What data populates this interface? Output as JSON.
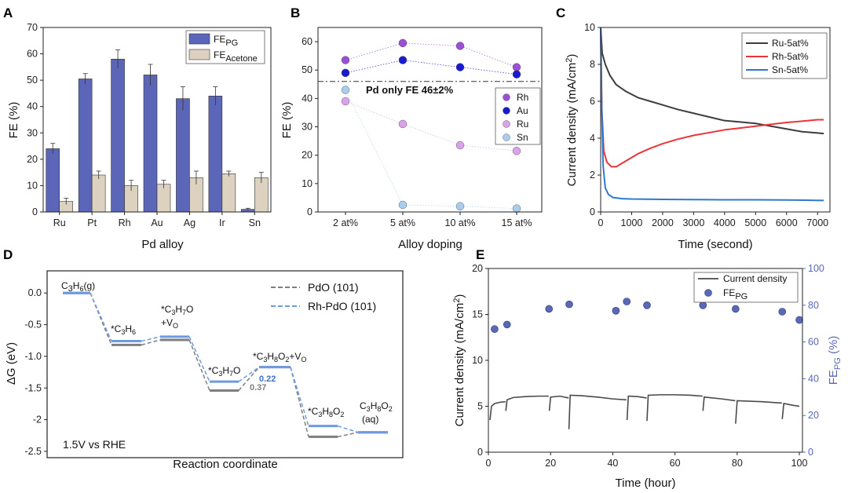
{
  "panel_labels": {
    "A": "A",
    "B": "B",
    "C": "C",
    "D": "D",
    "E": "E"
  },
  "chart_data": [
    {
      "id": "A",
      "type": "bar",
      "title": "",
      "xlabel": "Pd alloy",
      "ylabel": "FE (%)",
      "ylim": [
        0,
        70
      ],
      "yticks": [
        0,
        10,
        20,
        30,
        40,
        50,
        60,
        70
      ],
      "categories": [
        "Ru",
        "Pt",
        "Rh",
        "Au",
        "Ag",
        "Ir",
        "Sn"
      ],
      "series": [
        {
          "name": "FE",
          "sub": "PG",
          "color": "#5b66b8",
          "values": [
            24,
            50.5,
            58,
            52,
            43,
            44,
            1
          ],
          "errors": [
            2,
            2,
            3.5,
            4,
            4.5,
            3.5,
            0.4
          ]
        },
        {
          "name": "FE",
          "sub": "Acetone",
          "color": "#ddd1bf",
          "values": [
            4,
            14,
            10,
            10.5,
            13,
            14.5,
            13
          ],
          "errors": [
            1.2,
            1.5,
            2,
            1.5,
            2.5,
            1,
            2
          ]
        }
      ]
    },
    {
      "id": "B",
      "type": "scatter",
      "xlabel": "Alloy doping",
      "ylabel": "FE (%)",
      "ylim": [
        0,
        65
      ],
      "yticks": [
        0,
        10,
        20,
        30,
        40,
        50,
        60
      ],
      "categories": [
        "2 at%",
        "5 at%",
        "10 at%",
        "15 at%"
      ],
      "reference": {
        "value": 46,
        "label": "Pd only FE 46±2%"
      },
      "series": [
        {
          "name": "Rh",
          "color": "#9b4fd6",
          "values": [
            53.5,
            59.5,
            58.5,
            51
          ]
        },
        {
          "name": "Au",
          "color": "#1a1ad0",
          "values": [
            49,
            53.5,
            51,
            48.5
          ]
        },
        {
          "name": "Ru",
          "color": "#d9a2ea",
          "values": [
            39,
            31,
            23.5,
            21.5
          ]
        },
        {
          "name": "Sn",
          "color": "#a9cdee",
          "values": [
            43,
            2.5,
            2,
            1.2
          ]
        }
      ]
    },
    {
      "id": "C",
      "type": "line",
      "xlabel": "Time (second)",
      "ylabel": "Current density (mA/cm",
      "ylabel_sup": "2",
      "ylabel_end": ")",
      "xlim": [
        0,
        7400
      ],
      "ylim": [
        0,
        10
      ],
      "xticks": [
        0,
        1000,
        2000,
        3000,
        4000,
        5000,
        6000,
        7000
      ],
      "yticks": [
        0,
        2,
        4,
        6,
        8,
        10
      ],
      "series": [
        {
          "name": "Ru-5at%",
          "color": "#3c3c3c",
          "x": [
            0,
            50,
            150,
            300,
            500,
            800,
            1200,
            1600,
            2000,
            2500,
            3000,
            3500,
            4000,
            4500,
            5000,
            5500,
            6000,
            6500,
            7000,
            7200
          ],
          "y": [
            10,
            8.6,
            8.0,
            7.4,
            6.9,
            6.55,
            6.2,
            6.0,
            5.8,
            5.55,
            5.35,
            5.15,
            4.95,
            4.88,
            4.8,
            4.65,
            4.5,
            4.35,
            4.28,
            4.25
          ]
        },
        {
          "name": "Rh-5at%",
          "color": "#e8343a",
          "x": [
            0,
            40,
            100,
            200,
            350,
            500,
            800,
            1200,
            1600,
            2000,
            2500,
            3000,
            3500,
            4000,
            4500,
            5000,
            5500,
            6000,
            6500,
            7000,
            7200
          ],
          "y": [
            10,
            5.5,
            3.3,
            2.7,
            2.45,
            2.45,
            2.75,
            3.15,
            3.45,
            3.7,
            3.95,
            4.15,
            4.3,
            4.45,
            4.55,
            4.65,
            4.75,
            4.85,
            4.92,
            5.0,
            5.0
          ]
        },
        {
          "name": "Sn-5at%",
          "color": "#2f78d0",
          "x": [
            0,
            30,
            80,
            150,
            250,
            400,
            700,
            1000,
            2000,
            3000,
            4000,
            5000,
            6000,
            7000,
            7200
          ],
          "y": [
            10,
            6,
            2.5,
            1.3,
            0.95,
            0.78,
            0.72,
            0.7,
            0.68,
            0.67,
            0.66,
            0.66,
            0.65,
            0.63,
            0.62
          ]
        }
      ]
    },
    {
      "id": "D",
      "type": "line",
      "subtype": "energy-diagram",
      "xlabel": "Reaction coordinate",
      "ylabel": "ΔG (eV)",
      "ylim": [
        -2.6,
        0.35
      ],
      "yticks": [
        0.0,
        -0.5,
        -1.0,
        -1.5,
        -2.0,
        -2.5
      ],
      "ytick_labels": [
        "0.0",
        "-0.5",
        "-1.0",
        "-1.5",
        "-2",
        "-2.5"
      ],
      "condition": "1.5V vs RHE",
      "states": [
        "C3H6(g)",
        "*C3H6",
        "*C3H7O+VO",
        "*C3H7O",
        "*C3H8O2+VO",
        "*C3H8O2",
        "C3H8O2(aq)"
      ],
      "series": [
        {
          "name": "PdO (101)",
          "color": "#7f7f7f",
          "values": [
            0.0,
            -0.82,
            -0.74,
            -1.54,
            -1.17,
            -2.27,
            -2.2
          ]
        },
        {
          "name": "Rh-PdO (101)",
          "color": "#6f9ae0",
          "values": [
            0.0,
            -0.76,
            -0.69,
            -1.4,
            -1.17,
            -2.1,
            -2.2
          ]
        }
      ],
      "barriers": [
        {
          "label": "0.37",
          "color": "#7f7f7f"
        },
        {
          "label": "0.22",
          "color": "#3c72c8"
        }
      ],
      "state_labels": {
        "s1": "C",
        "s1a": "3",
        "s1b": "H",
        "s1c": "6",
        "s1d": "(g)",
        "s2": "*C",
        "s2a": "3",
        "s2b": "H",
        "s2c": "6",
        "s3": "*C",
        "s3a": "3",
        "s3b": "H",
        "s3c": "7",
        "s3d": "O",
        "s3e": "+V",
        "s3f": "O",
        "s4": "*C",
        "s4a": "3",
        "s4b": "H",
        "s4c": "7",
        "s4d": "O",
        "s5": "*C",
        "s5a": "3",
        "s5b": "H",
        "s5c": "8",
        "s5d": "O",
        "s5e": "2",
        "s5f": "+V",
        "s5g": "O",
        "s6": "*C",
        "s6a": "3",
        "s6b": "H",
        "s6c": "8",
        "s6d": "O",
        "s6e": "2",
        "s7": "C",
        "s7a": "3",
        "s7b": "H",
        "s7c": "8",
        "s7d": "O",
        "s7e": "2",
        "s7f": "(aq)"
      }
    },
    {
      "id": "E",
      "type": "line",
      "xlabel": "Time (hour)",
      "ylabel": "Current density (mA/cm",
      "ylabel_sup": "2",
      "ylabel_end": ")",
      "y2label": "FE",
      "y2label_sub": "PG",
      "y2label_end": " (%)",
      "xlim": [
        0,
        101
      ],
      "ylim": [
        0,
        20
      ],
      "y2lim": [
        0,
        100
      ],
      "xticks": [
        0,
        20,
        40,
        60,
        80,
        100
      ],
      "yticks": [
        0,
        5,
        10,
        15,
        20
      ],
      "y2ticks": [
        0,
        20,
        40,
        60,
        80,
        100
      ],
      "line": {
        "name": "Current density",
        "color": "#4a4a4a"
      },
      "points": {
        "name": "FE",
        "sub": "PG",
        "color": "#5a68b8",
        "x": [
          2,
          6,
          19.5,
          26,
          41,
          44.5,
          51,
          69,
          79.5,
          94.5,
          100
        ],
        "y": [
          67,
          69.5,
          78,
          80.5,
          77,
          82,
          80,
          80,
          78,
          76.5,
          72
        ]
      },
      "segments": [
        {
          "x": [
            0.5,
            1,
            2,
            4,
            5.5
          ],
          "y": [
            3.5,
            5.0,
            5.3,
            5.45,
            5.5
          ]
        },
        {
          "x": [
            5.6,
            6,
            8,
            12,
            16,
            19.4
          ],
          "y": [
            4.5,
            5.7,
            5.95,
            6.05,
            6.1,
            6.1
          ]
        },
        {
          "x": [
            19.6,
            20,
            23,
            25.8
          ],
          "y": [
            4.5,
            6.0,
            6.1,
            5.9
          ]
        },
        {
          "x": [
            25.9,
            26.3,
            30,
            35,
            40,
            44.4
          ],
          "y": [
            2.5,
            6.2,
            6.15,
            6.0,
            5.8,
            5.7
          ]
        },
        {
          "x": [
            44.6,
            45,
            48,
            50.9
          ],
          "y": [
            3.5,
            6.1,
            6.05,
            5.9
          ]
        },
        {
          "x": [
            51,
            51.4,
            55,
            60,
            65,
            68.9
          ],
          "y": [
            3.4,
            6.2,
            6.25,
            6.25,
            6.2,
            6.1
          ]
        },
        {
          "x": [
            69,
            69.4,
            75,
            79.4
          ],
          "y": [
            4.5,
            6.0,
            5.8,
            5.6
          ]
        },
        {
          "x": [
            79.5,
            80,
            88,
            94.4
          ],
          "y": [
            3.1,
            5.6,
            5.5,
            5.35
          ]
        },
        {
          "x": [
            94.5,
            95,
            98,
            100
          ],
          "y": [
            3.6,
            5.3,
            5.1,
            5.0
          ]
        }
      ]
    }
  ]
}
